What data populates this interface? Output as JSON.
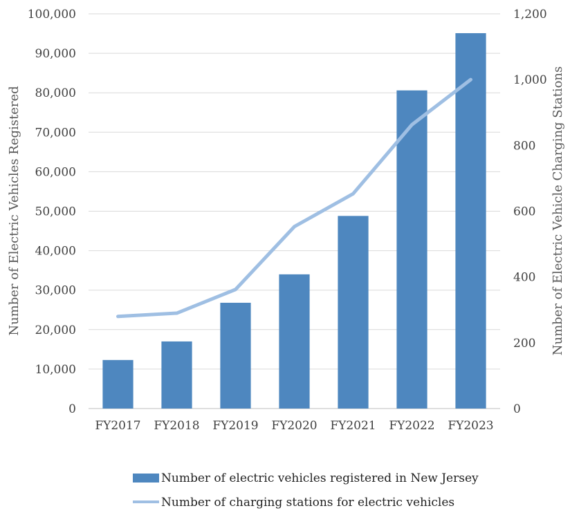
{
  "chart_data": {
    "type": "bar",
    "categories": [
      "FY2017",
      "FY2018",
      "FY2019",
      "FY2020",
      "FY2021",
      "FY2022",
      "FY2023"
    ],
    "series": [
      {
        "name": "Number of electric vehicles registered in New Jersey",
        "type": "bar",
        "axis": "left",
        "values": [
          12300,
          17000,
          26800,
          34000,
          48800,
          80600,
          95100
        ]
      },
      {
        "name": "Number of charging stations for electric vehicles",
        "type": "line",
        "axis": "right",
        "values": [
          280,
          290,
          362,
          553,
          653,
          863,
          1000
        ]
      }
    ],
    "ylabel": "Number of Electric Vehicles Registered",
    "y2label": "Number of Electric Vehicle Charging Stations",
    "ylim": [
      0,
      100000
    ],
    "y2lim": [
      0,
      1200
    ],
    "yticks": [
      "0",
      "10,000",
      "20,000",
      "30,000",
      "40,000",
      "50,000",
      "60,000",
      "70,000",
      "80,000",
      "90,000",
      "100,000"
    ],
    "y2ticks": [
      "0",
      "200",
      "400",
      "600",
      "800",
      "1,000",
      "1,200"
    ],
    "grid": true,
    "legend_position": "bottom",
    "colors": {
      "bar": "#4e87bf",
      "line": "#9fbfe3"
    }
  }
}
